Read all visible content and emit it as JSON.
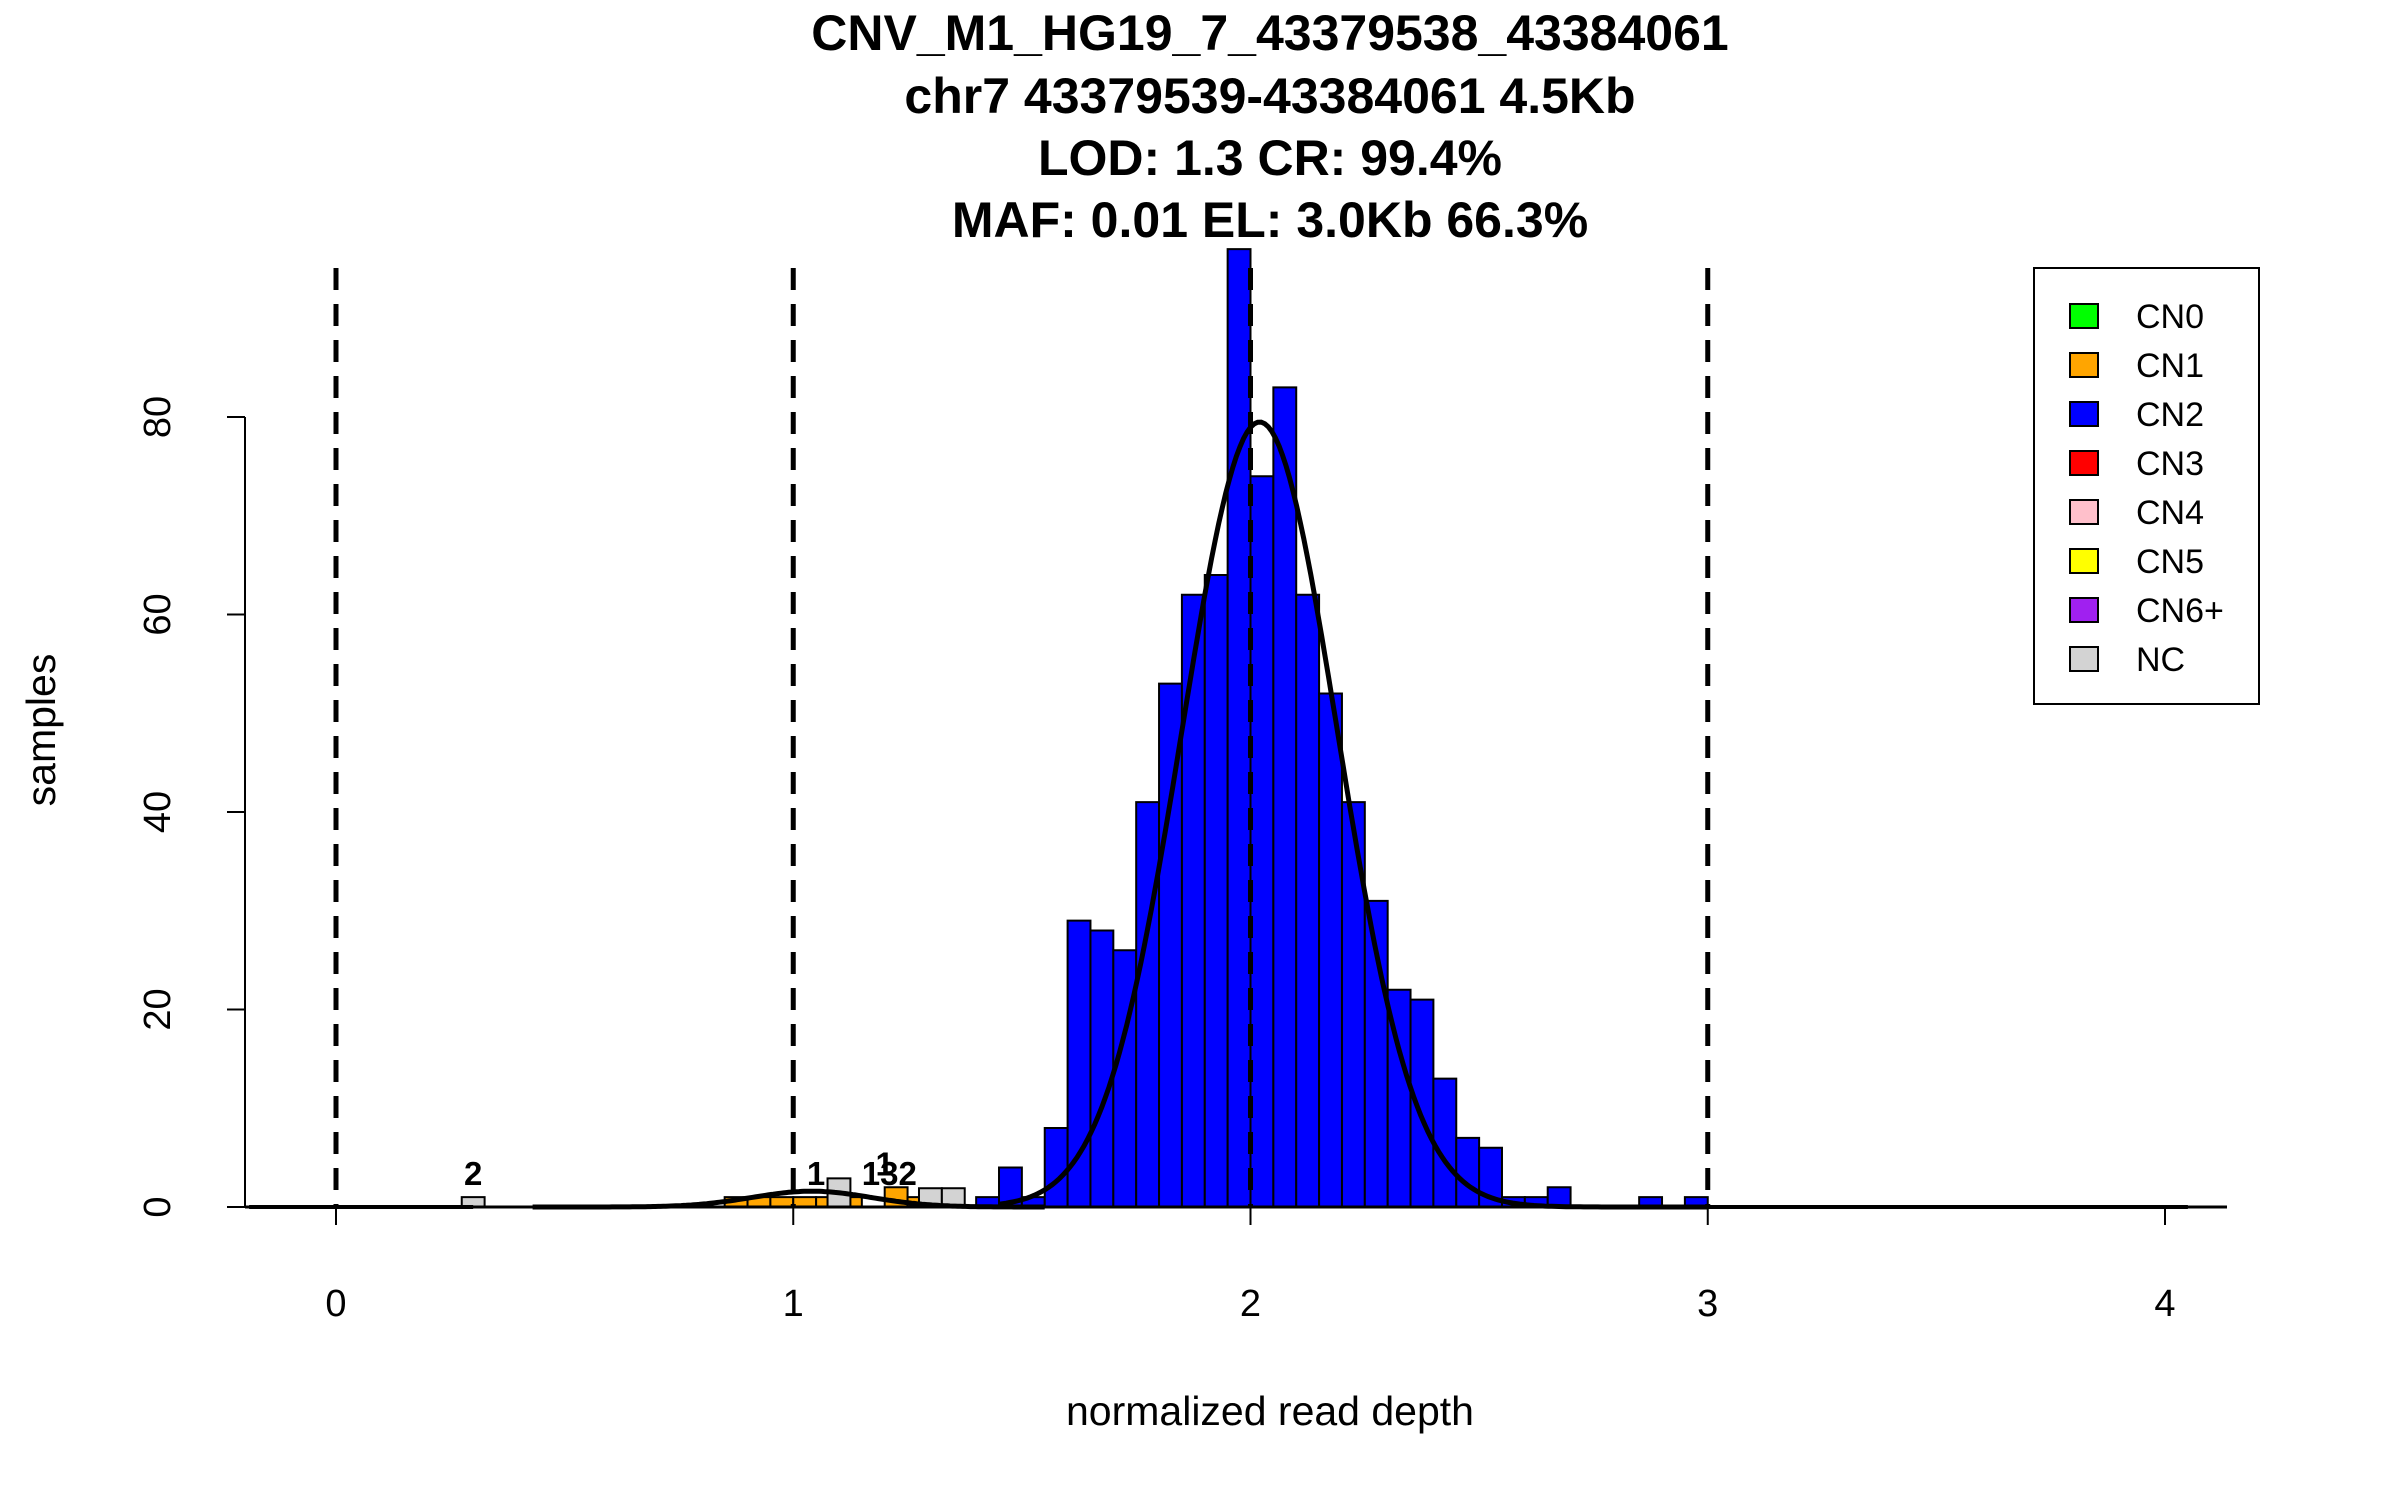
{
  "chart_data": {
    "type": "bar",
    "title_lines": [
      "CNV_M1_HG19_7_43379538_43384061",
      "chr7 43379539-43384061 4.5Kb",
      "LOD: 1.3 CR: 99.4%",
      "MAF: 0.01 EL: 3.0Kb 66.3%"
    ],
    "xlabel": "normalized read depth",
    "ylabel": "samples",
    "xlim": [
      -0.2,
      4.13
    ],
    "ylim": [
      0,
      97
    ],
    "x_ticks": [
      0,
      1,
      2,
      3,
      4
    ],
    "y_ticks": [
      0,
      20,
      40,
      60,
      80
    ],
    "vlines_dashed": [
      0,
      1,
      2,
      3
    ],
    "legend_position": "top-right",
    "legend": [
      {
        "label": "CN0",
        "color": "#00ff00"
      },
      {
        "label": "CN1",
        "color": "#ffa500"
      },
      {
        "label": "CN2",
        "color": "#0000ff"
      },
      {
        "label": "CN3",
        "color": "#ff0000"
      },
      {
        "label": "CN4",
        "color": "#ffc0cb"
      },
      {
        "label": "CN5",
        "color": "#ffff00"
      },
      {
        "label": "CN6+",
        "color": "#a020f0"
      },
      {
        "label": "NC",
        "color": "#d3d3d3"
      }
    ],
    "bin_width": 0.05,
    "series": [
      {
        "name": "CN1",
        "color": "#ffa500",
        "bins": [
          {
            "x0": 0.85,
            "v": 1
          },
          {
            "x0": 0.9,
            "v": 1
          },
          {
            "x0": 0.95,
            "v": 1
          },
          {
            "x0": 1.0,
            "v": 1
          },
          {
            "x0": 1.05,
            "v": 1
          },
          {
            "x0": 1.1,
            "v": 1
          },
          {
            "x0": 1.2,
            "v": 2
          },
          {
            "x0": 1.25,
            "v": 1
          },
          {
            "x0": 1.3,
            "v": 1
          }
        ]
      },
      {
        "name": "NC",
        "color": "#d3d3d3",
        "bins": [
          {
            "x0": 0.275,
            "v": 1
          },
          {
            "x0": 1.075,
            "v": 2.9
          },
          {
            "x0": 1.275,
            "v": 1.9
          },
          {
            "x0": 1.325,
            "v": 1.9
          }
        ]
      },
      {
        "name": "CN2",
        "color": "#0000ff",
        "bins": [
          {
            "x0": 1.4,
            "v": 1
          },
          {
            "x0": 1.45,
            "v": 4
          },
          {
            "x0": 1.5,
            "v": 1
          },
          {
            "x0": 1.55,
            "v": 8
          },
          {
            "x0": 1.6,
            "v": 29
          },
          {
            "x0": 1.65,
            "v": 28
          },
          {
            "x0": 1.7,
            "v": 26
          },
          {
            "x0": 1.75,
            "v": 41
          },
          {
            "x0": 1.8,
            "v": 53
          },
          {
            "x0": 1.85,
            "v": 62
          },
          {
            "x0": 1.9,
            "v": 64
          },
          {
            "x0": 1.95,
            "v": 97
          },
          {
            "x0": 2.0,
            "v": 74
          },
          {
            "x0": 2.05,
            "v": 83
          },
          {
            "x0": 2.1,
            "v": 62
          },
          {
            "x0": 2.15,
            "v": 52
          },
          {
            "x0": 2.2,
            "v": 41
          },
          {
            "x0": 2.25,
            "v": 31
          },
          {
            "x0": 2.3,
            "v": 22
          },
          {
            "x0": 2.35,
            "v": 21
          },
          {
            "x0": 2.4,
            "v": 13
          },
          {
            "x0": 2.45,
            "v": 7
          },
          {
            "x0": 2.5,
            "v": 6
          },
          {
            "x0": 2.55,
            "v": 1
          },
          {
            "x0": 2.6,
            "v": 1
          },
          {
            "x0": 2.65,
            "v": 2
          },
          {
            "x0": 2.85,
            "v": 1
          },
          {
            "x0": 2.95,
            "v": 1
          }
        ]
      }
    ],
    "bar_labels": [
      {
        "x": 0.3,
        "y": 1,
        "text": "2"
      },
      {
        "x": 1.05,
        "y": 1,
        "text": "1"
      },
      {
        "x": 1.2,
        "y": 2,
        "text": "1"
      },
      {
        "x": 1.21,
        "y": 1,
        "text": "132"
      }
    ],
    "density_curves": [
      {
        "mean": 1.04,
        "sd": 0.13,
        "peak": 1.6,
        "x_from": 0.43,
        "x_to": 1.55
      },
      {
        "mean": 2.02,
        "sd": 0.17,
        "peak": 79.5,
        "x_from": 1.45,
        "x_to": 3.0
      }
    ],
    "baseline_segments": [
      {
        "x_from": -0.19,
        "x_to": 0.3
      },
      {
        "x_from": 3.0,
        "x_to": 4.05
      }
    ]
  }
}
